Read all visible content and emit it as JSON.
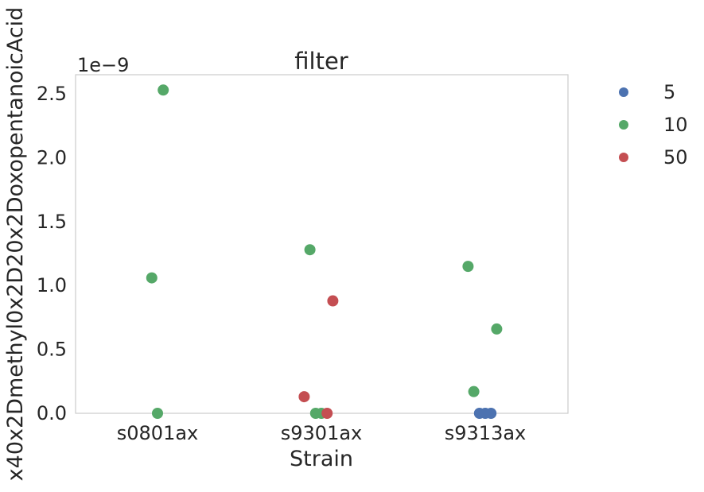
{
  "chart_data": {
    "type": "scatter",
    "title": "filter",
    "xlabel": "Strain",
    "ylabel": "x40x2Dmethyl0x2D20x2DoxopentanoicAcid",
    "y_multiplier_label": "1e−9",
    "categories": [
      "s0801ax",
      "s9301ax",
      "s9313ax"
    ],
    "ylim": [
      0,
      2.65
    ],
    "yticks": [
      0.0,
      0.5,
      1.0,
      1.5,
      2.0,
      2.5
    ],
    "ytick_labels": [
      "0.0",
      "0.5",
      "1.0",
      "1.5",
      "2.0",
      "2.5"
    ],
    "grid": false,
    "legend_placement": "outside-right",
    "series": [
      {
        "name": "5",
        "color": "#4c72b0",
        "points": [
          {
            "category": "s9313ax",
            "offset": -0.2,
            "y": 0.0
          },
          {
            "category": "s9313ax",
            "offset": 0.0,
            "y": 0.0
          },
          {
            "category": "s9313ax",
            "offset": 0.2,
            "y": 0.0
          }
        ]
      },
      {
        "name": "10",
        "color": "#55a868",
        "points": [
          {
            "category": "s0801ax",
            "offset": -0.2,
            "y": 1.06
          },
          {
            "category": "s0801ax",
            "offset": 0.0,
            "y": 0.0
          },
          {
            "category": "s0801ax",
            "offset": 0.2,
            "y": 2.53
          },
          {
            "category": "s9301ax",
            "offset": -0.4,
            "y": 1.28
          },
          {
            "category": "s9301ax",
            "offset": -0.2,
            "y": 0.0
          },
          {
            "category": "s9301ax",
            "offset": 0.0,
            "y": 0.0
          },
          {
            "category": "s9313ax",
            "offset": -0.6,
            "y": 1.15
          },
          {
            "category": "s9313ax",
            "offset": -0.4,
            "y": 0.17
          },
          {
            "category": "s9313ax",
            "offset": 0.4,
            "y": 0.66
          }
        ]
      },
      {
        "name": "50",
        "color": "#c44e52",
        "points": [
          {
            "category": "s9301ax",
            "offset": -0.6,
            "y": 0.13
          },
          {
            "category": "s9301ax",
            "offset": 0.2,
            "y": 0.0
          },
          {
            "category": "s9301ax",
            "offset": 0.4,
            "y": 0.88
          }
        ]
      }
    ]
  }
}
